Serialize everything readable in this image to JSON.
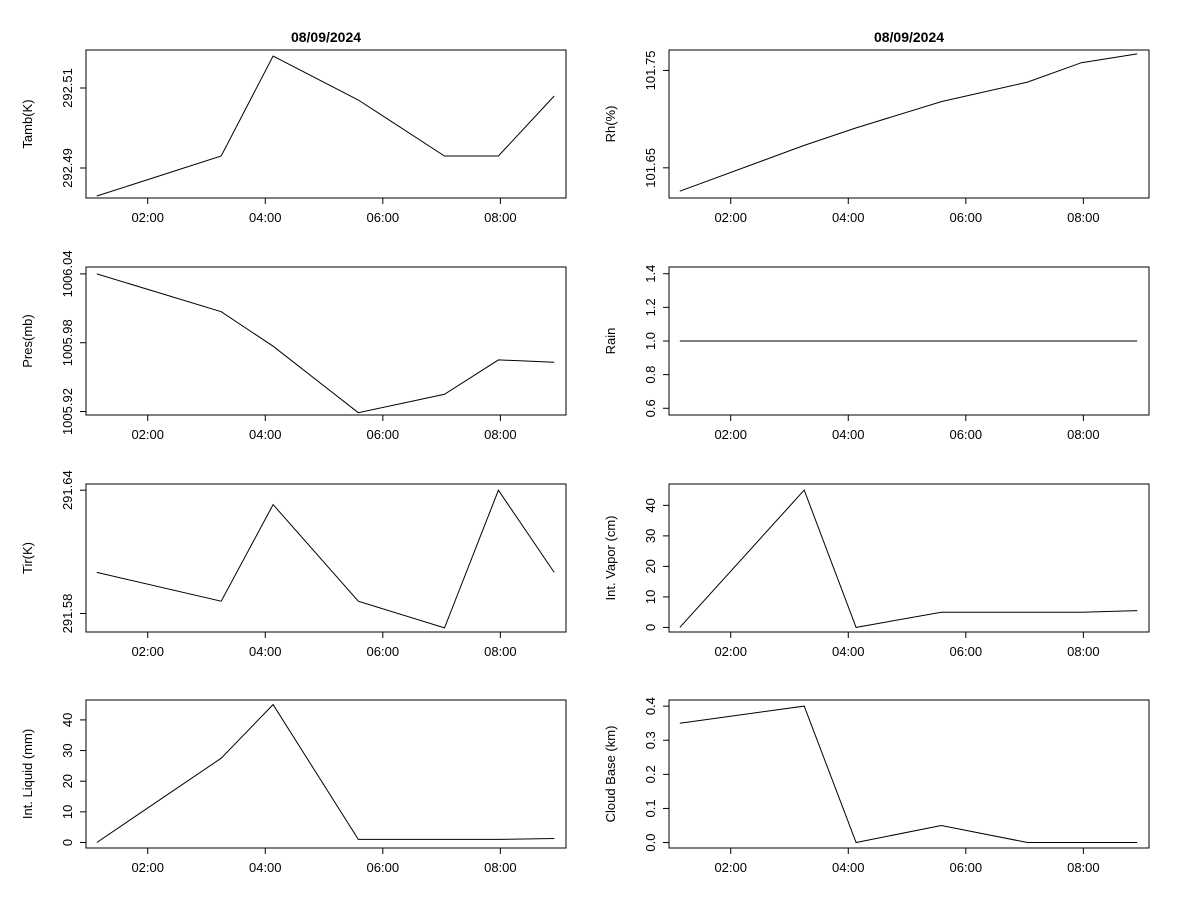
{
  "chart_data": [
    {
      "type": "line",
      "title": "08/09/2024",
      "ylabel": "Tamb(K)",
      "x": [
        "01:08",
        "03:15",
        "04:08",
        "05:35",
        "07:03",
        "07:58",
        "08:55"
      ],
      "values": [
        292.483,
        292.493,
        292.518,
        292.507,
        292.493,
        292.493,
        292.508
      ],
      "xlim": [
        "00:57",
        "09:07"
      ],
      "ylim": [
        292.4825,
        292.5195
      ],
      "xticks": [
        "02:00",
        "04:00",
        "06:00",
        "08:00"
      ],
      "yticks": [
        292.49,
        292.51
      ],
      "grid": false
    },
    {
      "type": "line",
      "title": "08/09/2024",
      "ylabel": "Rh(%)",
      "x": [
        "01:08",
        "03:15",
        "04:08",
        "05:35",
        "07:03",
        "07:58",
        "08:55"
      ],
      "values": [
        101.626,
        101.673,
        101.691,
        101.718,
        101.738,
        101.758,
        101.767
      ],
      "xlim": [
        "00:57",
        "09:07"
      ],
      "ylim": [
        101.619,
        101.771
      ],
      "xticks": [
        "02:00",
        "04:00",
        "06:00",
        "08:00"
      ],
      "yticks": [
        101.65,
        101.75
      ],
      "grid": false
    },
    {
      "type": "line",
      "title": "",
      "ylabel": "Pres(mb)",
      "x": [
        "01:08",
        "03:15",
        "04:08",
        "05:35",
        "07:03",
        "07:58",
        "08:55"
      ],
      "values": [
        1006.04,
        1006.007,
        1005.977,
        1005.919,
        1005.935,
        1005.965,
        1005.963
      ],
      "xlim": [
        "00:57",
        "09:07"
      ],
      "ylim": [
        1005.917,
        1006.046
      ],
      "xticks": [
        "02:00",
        "04:00",
        "06:00",
        "08:00"
      ],
      "yticks": [
        1005.92,
        1005.98,
        1006.04
      ],
      "grid": false
    },
    {
      "type": "line",
      "title": "",
      "ylabel": "Rain",
      "x": [
        "01:08",
        "08:55"
      ],
      "values": [
        1.0,
        1.0
      ],
      "xlim": [
        "00:57",
        "09:07"
      ],
      "ylim": [
        0.56,
        1.44
      ],
      "xticks": [
        "02:00",
        "04:00",
        "06:00",
        "08:00"
      ],
      "yticks": [
        0.6,
        0.8,
        1.0,
        1.2,
        1.4
      ],
      "grid": false
    },
    {
      "type": "line",
      "title": "",
      "ylabel": "Tir(K)",
      "x": [
        "01:08",
        "03:15",
        "04:08",
        "05:35",
        "07:03",
        "07:58",
        "08:55"
      ],
      "values": [
        291.6,
        291.586,
        291.633,
        291.586,
        291.573,
        291.64,
        291.6
      ],
      "xlim": [
        "00:57",
        "09:07"
      ],
      "ylim": [
        291.571,
        291.643
      ],
      "xticks": [
        "02:00",
        "04:00",
        "06:00",
        "08:00"
      ],
      "yticks": [
        291.58,
        291.64
      ],
      "grid": false
    },
    {
      "type": "line",
      "title": "",
      "ylabel": "Int. Vapor (cm)",
      "x": [
        "01:08",
        "03:15",
        "04:08",
        "05:35",
        "07:03",
        "07:58",
        "08:55"
      ],
      "values": [
        0,
        45,
        0,
        5,
        5,
        5,
        5.5
      ],
      "xlim": [
        "00:57",
        "09:07"
      ],
      "ylim": [
        -1.5,
        47
      ],
      "xticks": [
        "02:00",
        "04:00",
        "06:00",
        "08:00"
      ],
      "yticks": [
        0,
        10,
        20,
        30,
        40
      ],
      "grid": false
    },
    {
      "type": "line",
      "title": "",
      "ylabel": "Int. Liquid (mm)",
      "x": [
        "01:08",
        "03:15",
        "04:08",
        "05:35",
        "07:03",
        "07:58",
        "08:55"
      ],
      "values": [
        0,
        27.5,
        45,
        1,
        1,
        1,
        1.3
      ],
      "xlim": [
        "00:57",
        "09:07"
      ],
      "ylim": [
        -1.8,
        46.5
      ],
      "xticks": [
        "02:00",
        "04:00",
        "06:00",
        "08:00"
      ],
      "yticks": [
        0,
        10,
        20,
        30,
        40
      ],
      "grid": false
    },
    {
      "type": "line",
      "title": "",
      "ylabel": "Cloud Base (km)",
      "x": [
        "01:08",
        "03:15",
        "04:08",
        "05:35",
        "07:03",
        "07:58",
        "08:55"
      ],
      "values": [
        0.35,
        0.4,
        0.0,
        0.05,
        0.0,
        0.0,
        0.0
      ],
      "xlim": [
        "00:57",
        "09:07"
      ],
      "ylim": [
        -0.016,
        0.418
      ],
      "xticks": [
        "02:00",
        "04:00",
        "06:00",
        "08:00"
      ],
      "yticks": [
        0.0,
        0.1,
        0.2,
        0.3,
        0.4
      ],
      "grid": false
    }
  ]
}
